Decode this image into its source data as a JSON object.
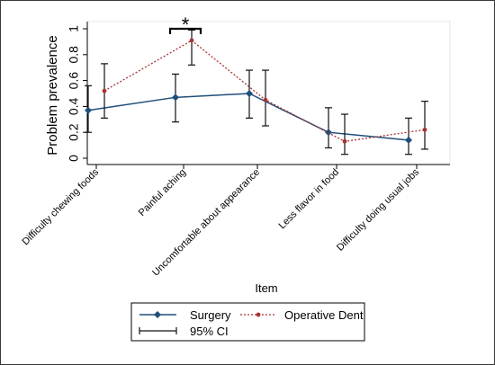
{
  "chart_data": {
    "type": "line",
    "xlabel": "Item",
    "ylabel": "Problem prevalence",
    "ylim": [
      0,
      1
    ],
    "yticks": [
      0,
      0.2,
      0.4,
      0.6,
      0.8,
      1
    ],
    "ytick_labels": [
      "0",
      "0.2",
      "0.4",
      "0.6",
      "0.8",
      "1"
    ],
    "categories": [
      "Difficulty chewing foods",
      "Painful aching",
      "Uncomfortable about appearance",
      "Less flavor in food",
      "Difficulty doing usual jobs"
    ],
    "series": [
      {
        "name": "Surgery",
        "color": "#1f4e79",
        "line_style": "solid",
        "marker": "diamond",
        "values": [
          0.37,
          0.47,
          0.5,
          0.2,
          0.14
        ],
        "ci_low": [
          0.2,
          0.28,
          0.31,
          0.08,
          0.03
        ],
        "ci_high": [
          0.56,
          0.65,
          0.68,
          0.39,
          0.31
        ]
      },
      {
        "name": "Operative Dent",
        "color": "#a83232",
        "line_style": "dotted",
        "marker": "circle",
        "values": [
          0.52,
          0.91,
          0.45,
          0.13,
          0.22
        ],
        "ci_low": [
          0.31,
          0.72,
          0.25,
          0.03,
          0.07
        ],
        "ci_high": [
          0.73,
          0.99,
          0.68,
          0.34,
          0.44
        ]
      }
    ],
    "annotations": [
      {
        "text": "*",
        "category_span": [
          0,
          1
        ]
      }
    ],
    "legend": {
      "placement": "bottom",
      "entries": [
        "Surgery",
        "Operative Dent",
        "95% CI"
      ]
    },
    "grid": false
  }
}
